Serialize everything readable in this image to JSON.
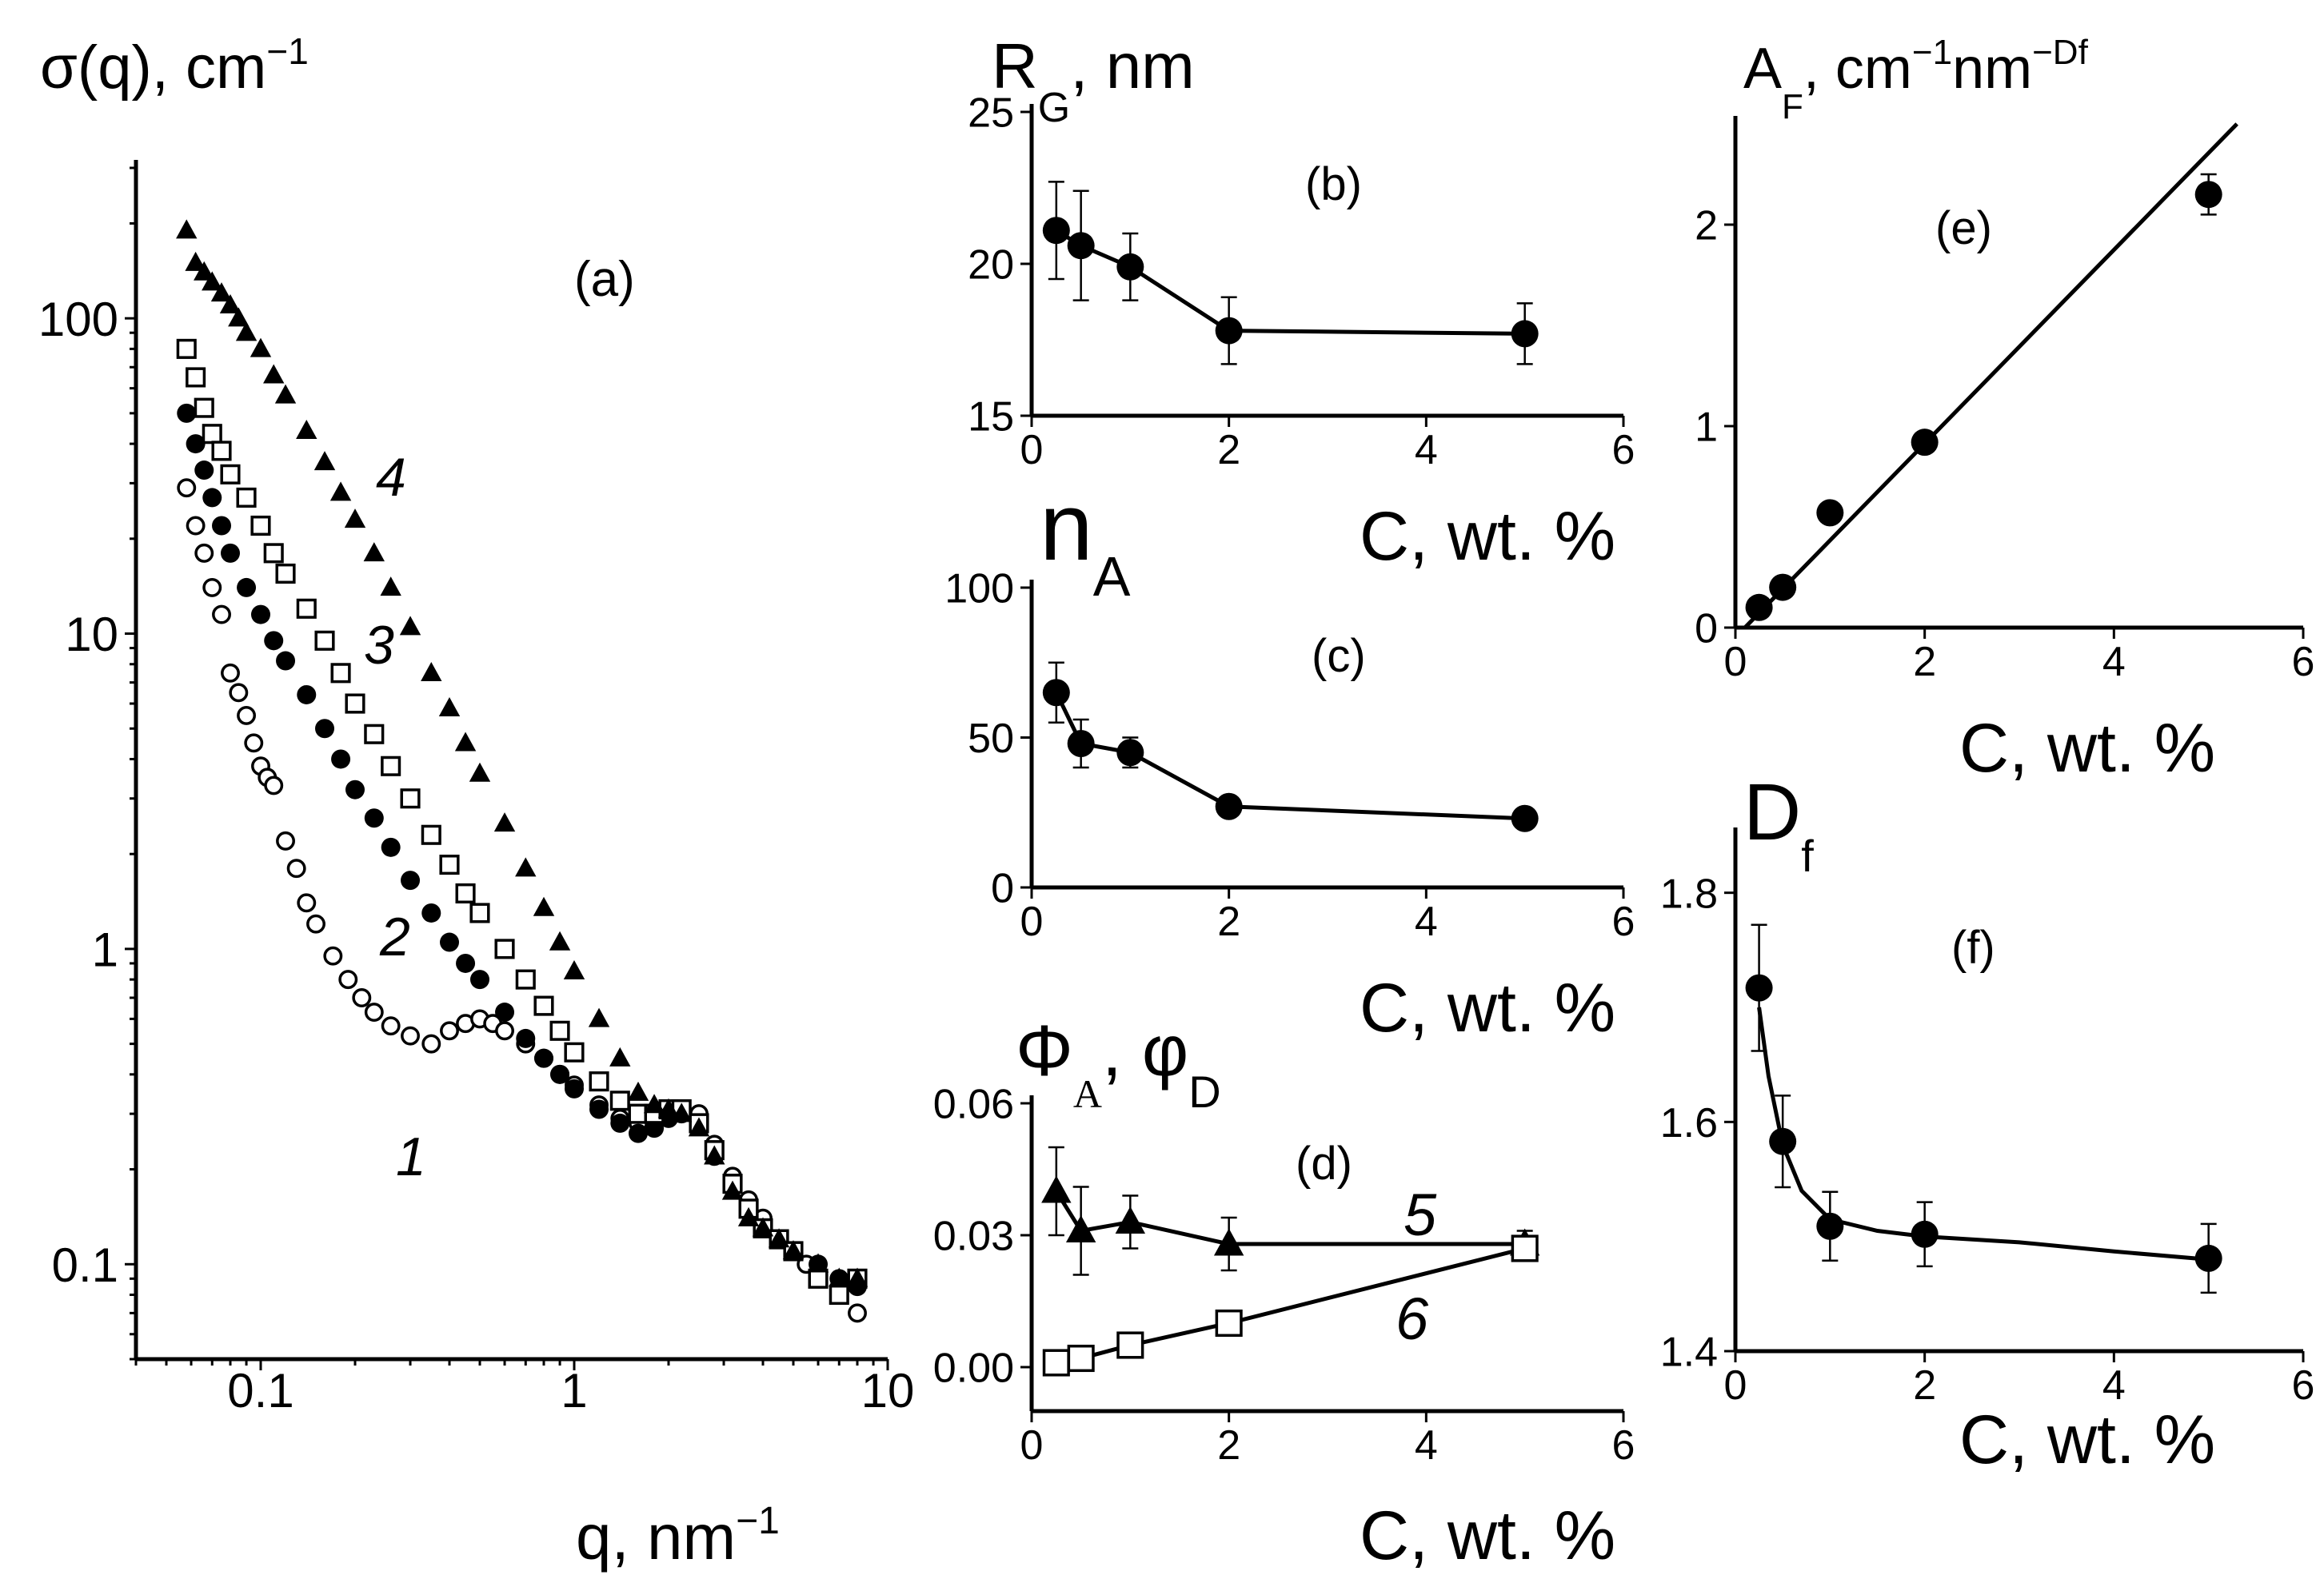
{
  "chart_data": [
    {
      "id": "a",
      "type": "scatter",
      "panel_label": "(a)",
      "ylabel": "σ(q), cm",
      "ylabel_sup": "−1",
      "xlabel": "q, nm",
      "xlabel_sup": "−1",
      "xscale": "log",
      "yscale": "log",
      "xlim": [
        0.04,
        10
      ],
      "ylim": [
        0.05,
        300
      ],
      "xticks": [
        {
          "v": 0.1,
          "label": "0.1"
        },
        {
          "v": 1,
          "label": "1"
        },
        {
          "v": 10,
          "label": "10"
        }
      ],
      "yticks": [
        {
          "v": 0.1,
          "label": "0.1"
        },
        {
          "v": 1,
          "label": "1"
        },
        {
          "v": 10,
          "label": "10"
        },
        {
          "v": 100,
          "label": "100"
        }
      ],
      "series": [
        {
          "name": "1",
          "marker": "circle-open",
          "label_at": [
            0.27,
            0.3
          ],
          "x": [
            0.058,
            0.062,
            0.066,
            0.07,
            0.075,
            0.08,
            0.085,
            0.09,
            0.095,
            0.1,
            0.105,
            0.11,
            0.12,
            0.13,
            0.14,
            0.15,
            0.17,
            0.19,
            0.21,
            0.23,
            0.26,
            0.3,
            0.35,
            0.4,
            0.45,
            0.5,
            0.55,
            0.6,
            0.7,
            0.8,
            0.9,
            1.0,
            1.2,
            1.4,
            1.6,
            1.8,
            2.0,
            2.2,
            2.5,
            2.8,
            3.2,
            3.6,
            4.0,
            4.5,
            5.0,
            5.5,
            6.0,
            7.0,
            8.0
          ],
          "y": [
            29,
            22,
            18,
            14,
            11.5,
            7.5,
            6.5,
            5.5,
            4.5,
            3.8,
            3.5,
            3.3,
            2.2,
            1.8,
            1.4,
            1.2,
            0.95,
            0.8,
            0.7,
            0.63,
            0.57,
            0.53,
            0.5,
            0.55,
            0.58,
            0.6,
            0.58,
            0.55,
            0.5,
            0.45,
            0.4,
            0.37,
            0.32,
            0.29,
            0.28,
            0.29,
            0.3,
            0.31,
            0.3,
            0.24,
            0.19,
            0.16,
            0.14,
            0.12,
            0.11,
            0.1,
            0.09,
            0.08,
            0.07
          ]
        },
        {
          "name": "2",
          "marker": "circle-filled",
          "label_at": [
            0.3,
            1.2
          ],
          "x": [
            0.058,
            0.062,
            0.066,
            0.07,
            0.075,
            0.08,
            0.09,
            0.1,
            0.11,
            0.12,
            0.14,
            0.16,
            0.18,
            0.2,
            0.23,
            0.26,
            0.3,
            0.35,
            0.4,
            0.45,
            0.5,
            0.6,
            0.7,
            0.8,
            0.9,
            1.0,
            1.2,
            1.4,
            1.6,
            1.8,
            2.0,
            2.2,
            2.5,
            2.8,
            3.2,
            3.6,
            4.0,
            4.5,
            5.0,
            6.0,
            7.0,
            8.0
          ],
          "y": [
            50,
            40,
            33,
            27,
            22,
            18,
            14,
            11.5,
            9.5,
            8.2,
            6.4,
            5.0,
            4.0,
            3.2,
            2.6,
            2.1,
            1.65,
            1.3,
            1.05,
            0.9,
            0.8,
            0.63,
            0.52,
            0.45,
            0.4,
            0.36,
            0.31,
            0.28,
            0.26,
            0.27,
            0.29,
            0.3,
            0.28,
            0.22,
            0.18,
            0.15,
            0.13,
            0.12,
            0.11,
            0.1,
            0.09,
            0.085
          ]
        },
        {
          "name": "3",
          "marker": "square-open",
          "label_at": [
            0.22,
            8
          ],
          "x": [
            0.058,
            0.062,
            0.066,
            0.07,
            0.075,
            0.08,
            0.09,
            0.1,
            0.11,
            0.12,
            0.14,
            0.16,
            0.18,
            0.2,
            0.23,
            0.26,
            0.3,
            0.35,
            0.4,
            0.45,
            0.5,
            0.6,
            0.7,
            0.8,
            0.9,
            1.0,
            1.2,
            1.4,
            1.6,
            1.8,
            2.0,
            2.2,
            2.5,
            2.8,
            3.2,
            3.6,
            4.0,
            4.5,
            5.0,
            6.0,
            7.0,
            8.0
          ],
          "y": [
            80,
            65,
            52,
            43,
            38,
            32,
            27,
            22,
            18,
            15.5,
            12,
            9.5,
            7.5,
            6,
            4.8,
            3.8,
            3.0,
            2.3,
            1.85,
            1.5,
            1.3,
            1.0,
            0.8,
            0.66,
            0.55,
            0.47,
            0.38,
            0.33,
            0.3,
            0.3,
            0.31,
            0.31,
            0.28,
            0.23,
            0.18,
            0.15,
            0.13,
            0.12,
            0.11,
            0.09,
            0.08,
            0.09
          ]
        },
        {
          "name": "4",
          "marker": "triangle-filled",
          "label_at": [
            0.24,
            28
          ],
          "x": [
            0.058,
            0.062,
            0.066,
            0.07,
            0.075,
            0.08,
            0.085,
            0.09,
            0.1,
            0.11,
            0.12,
            0.14,
            0.16,
            0.18,
            0.2,
            0.23,
            0.26,
            0.3,
            0.35,
            0.4,
            0.45,
            0.5,
            0.6,
            0.7,
            0.8,
            0.9,
            1.0,
            1.2,
            1.4,
            1.6,
            1.8,
            2.0,
            2.2,
            2.5,
            2.8,
            3.2,
            3.6,
            4.0,
            4.5,
            5.0,
            6.0,
            7.0,
            8.0
          ],
          "y": [
            190,
            150,
            140,
            130,
            120,
            110,
            100,
            90,
            80,
            66,
            57,
            44,
            35,
            28,
            23,
            18,
            14,
            10.5,
            7.5,
            5.8,
            4.5,
            3.6,
            2.5,
            1.8,
            1.35,
            1.05,
            0.85,
            0.6,
            0.45,
            0.35,
            0.32,
            0.31,
            0.3,
            0.27,
            0.22,
            0.17,
            0.14,
            0.13,
            0.12,
            0.11,
            0.1,
            0.09,
            0.09
          ]
        }
      ]
    },
    {
      "id": "b",
      "type": "line",
      "panel_label": "(b)",
      "ylabel": "R",
      "ylabel_sub": "G",
      "ylabel_rest": ", nm",
      "xlabel": "C, wt. %",
      "xlim": [
        0,
        6
      ],
      "ylim": [
        15,
        25
      ],
      "xticks": [
        0,
        2,
        4,
        6
      ],
      "yticks": [
        15,
        20,
        25
      ],
      "series": [
        {
          "marker": "circle-filled",
          "x": [
            0.25,
            0.5,
            1,
            2,
            5
          ],
          "y": [
            21.1,
            20.6,
            19.9,
            17.8,
            17.7
          ],
          "err": [
            1.6,
            1.8,
            1.1,
            1.1,
            1.0
          ]
        }
      ]
    },
    {
      "id": "c",
      "type": "line",
      "panel_label": "(c)",
      "ylabel": "n",
      "ylabel_sub": "A",
      "xlabel": "C, wt. %",
      "xlim": [
        0,
        6
      ],
      "ylim": [
        0,
        100
      ],
      "xticks": [
        0,
        2,
        4,
        6
      ],
      "yticks": [
        0,
        50,
        100
      ],
      "series": [
        {
          "marker": "circle-filled",
          "x": [
            0.25,
            0.5,
            1,
            2,
            5
          ],
          "y": [
            65,
            48,
            45,
            27,
            23
          ],
          "err": [
            10,
            8,
            5,
            3,
            2
          ]
        }
      ]
    },
    {
      "id": "d",
      "type": "line",
      "panel_label": "(d)",
      "ylabel": "Φ",
      "ylabel_sub": "A",
      "ylabel_mid": ", φ",
      "ylabel_sub2": "D",
      "xlabel": "C, wt. %",
      "xlim": [
        0,
        6
      ],
      "ylim": [
        -0.01,
        0.06
      ],
      "xticks": [
        0,
        2,
        4,
        6
      ],
      "yticks": [
        {
          "v": 0.0,
          "label": "0.00"
        },
        {
          "v": 0.03,
          "label": "0.03"
        },
        {
          "v": 0.06,
          "label": "0.06"
        }
      ],
      "series": [
        {
          "name": "5",
          "marker": "triangle-filled",
          "label_at": [
            4.8,
            0.039
          ],
          "x": [
            0.25,
            0.5,
            1,
            2,
            5
          ],
          "y": [
            0.04,
            0.031,
            0.033,
            0.028,
            0.028
          ],
          "err": [
            0.01,
            0.01,
            0.006,
            0.006,
            0.003
          ]
        },
        {
          "name": "6",
          "marker": "square-open",
          "label_at": [
            4.8,
            0.0
          ],
          "x": [
            0.25,
            0.5,
            1,
            2,
            5
          ],
          "y": [
            0.001,
            0.002,
            0.005,
            0.01,
            0.027
          ],
          "err": [
            0,
            0,
            0,
            0.001,
            0.002
          ]
        }
      ]
    },
    {
      "id": "e",
      "type": "scatter",
      "panel_label": "(e)",
      "ylabel": "A",
      "ylabel_sub": "F",
      "ylabel_rest": ", cm",
      "ylabel_sup": "−1",
      "ylabel_rest2": "nm",
      "ylabel_sup2": "−Df",
      "xlabel": "C, wt. %",
      "xlim": [
        0,
        6
      ],
      "ylim": [
        0,
        2.5
      ],
      "xticks": [
        0,
        2,
        4,
        6
      ],
      "yticks": [
        0,
        1,
        2
      ],
      "fit_line": {
        "x": [
          0.1,
          5.3
        ],
        "y": [
          0.0,
          2.5
        ]
      },
      "series": [
        {
          "marker": "circle-filled",
          "x": [
            0.25,
            0.5,
            1,
            2,
            5
          ],
          "y": [
            0.1,
            0.2,
            0.57,
            0.92,
            2.15
          ],
          "err": [
            0,
            0,
            0,
            0,
            0.1
          ]
        }
      ]
    },
    {
      "id": "f",
      "type": "line",
      "panel_label": "(f)",
      "ylabel": "D",
      "ylabel_sub": "f",
      "xlabel": "C, wt. %",
      "xlim": [
        0,
        6
      ],
      "ylim": [
        1.4,
        1.85
      ],
      "xticks": [
        0,
        2,
        4,
        6
      ],
      "yticks": [
        {
          "v": 1.4,
          "label": "1.4"
        },
        {
          "v": 1.6,
          "label": "1.6"
        },
        {
          "v": 1.8,
          "label": "1.8"
        }
      ],
      "fit_curve": {
        "x": [
          0.25,
          0.35,
          0.5,
          0.7,
          1.0,
          1.5,
          2,
          3,
          4,
          5
        ],
        "y": [
          1.7,
          1.64,
          1.58,
          1.54,
          1.515,
          1.505,
          1.5,
          1.495,
          1.487,
          1.48
        ]
      },
      "series": [
        {
          "marker": "circle-filled",
          "x": [
            0.25,
            0.5,
            1,
            2,
            5
          ],
          "y": [
            1.717,
            1.583,
            1.509,
            1.502,
            1.481
          ],
          "err": [
            0.055,
            0.04,
            0.03,
            0.028,
            0.03
          ]
        }
      ]
    }
  ]
}
